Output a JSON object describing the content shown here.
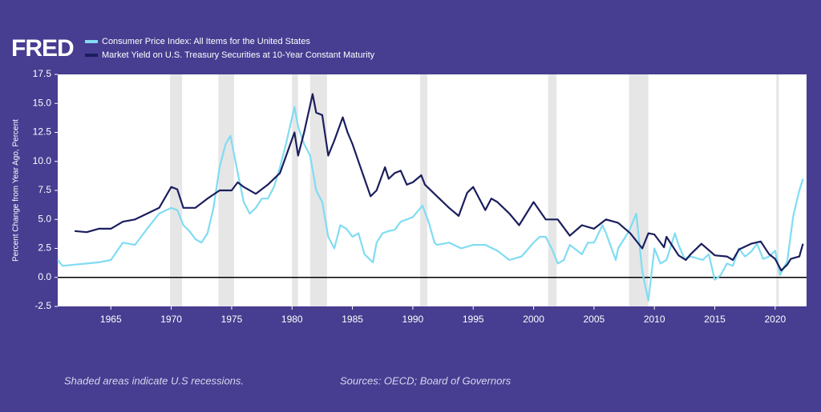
{
  "chart_data": {
    "type": "line",
    "brand": "FRED",
    "ylabel": "Percent Change from Year Ago, Percent",
    "footnote": "Shaded areas indicate U.S recessions.",
    "source": "Sources: OECD; Board of Governors",
    "xlim": [
      1960.6,
      2022.6
    ],
    "xticks": [
      1965,
      1970,
      1975,
      1980,
      1985,
      1990,
      1995,
      2000,
      2005,
      2010,
      2015,
      2020
    ],
    "ylim": [
      -2.5,
      17.5
    ],
    "yticks": [
      17.5,
      {
        "value": 15,
        "label": "15.0"
      },
      12.5,
      {
        "value": 10,
        "label": "10.0"
      },
      7.5,
      {
        "value": 5,
        "label": "5.0"
      },
      2.5,
      {
        "value": 0,
        "label": "0.0"
      },
      -2.5
    ],
    "baseline": 0,
    "recession_color": "#e6e6e6",
    "recessions": [
      [
        1969.9,
        1970.9
      ],
      [
        1973.9,
        1975.2
      ],
      [
        1980.0,
        1980.5
      ],
      [
        1981.5,
        1982.9
      ],
      [
        1990.6,
        1991.2
      ],
      [
        2001.2,
        2001.9
      ],
      [
        2007.9,
        2009.5
      ],
      [
        2020.1,
        2020.3
      ]
    ],
    "series": [
      {
        "name": "Consumer Price Index: All Items for the United States",
        "color": "#80dcf2",
        "x": [
          1960.6,
          1961,
          1962,
          1963,
          1964,
          1965,
          1966,
          1967,
          1968,
          1969,
          1970,
          1970.5,
          1971,
          1971.5,
          1972,
          1972.5,
          1973,
          1973.5,
          1974,
          1974.5,
          1974.9,
          1975.5,
          1976,
          1976.5,
          1977,
          1977.5,
          1978,
          1978.5,
          1979,
          1979.5,
          1980.2,
          1980.5,
          1981,
          1981.5,
          1982,
          1982.5,
          1983,
          1983.5,
          1984,
          1984.5,
          1985,
          1985.5,
          1986,
          1986.7,
          1987,
          1987.5,
          1988,
          1988.5,
          1989,
          1989.5,
          1990,
          1990.8,
          1991.3,
          1991.8,
          1992,
          1993,
          1994,
          1995,
          1996,
          1997,
          1998,
          1999,
          2000,
          2000.5,
          2001,
          2001.5,
          2002,
          2002.5,
          2003,
          2004,
          2004.5,
          2005,
          2005.7,
          2006,
          2006.8,
          2007,
          2007.9,
          2008.5,
          2009,
          2009.5,
          2010,
          2010.5,
          2011,
          2011.7,
          2012,
          2012.5,
          2013,
          2014,
          2014.5,
          2015,
          2015.5,
          2016,
          2016.5,
          2017,
          2017.5,
          2018,
          2018.5,
          2019,
          2019.5,
          2020,
          2020.4,
          2021,
          2021.5,
          2022,
          2022.3
        ],
        "values": [
          1.5,
          1.0,
          1.1,
          1.2,
          1.3,
          1.5,
          3.0,
          2.8,
          4.2,
          5.5,
          6.0,
          5.8,
          4.5,
          4.0,
          3.3,
          3.0,
          3.8,
          6.0,
          9.5,
          11.5,
          12.2,
          9.0,
          6.5,
          5.5,
          6.0,
          6.8,
          6.8,
          7.8,
          9.5,
          11.5,
          14.7,
          13.0,
          11.5,
          10.5,
          7.5,
          6.5,
          3.5,
          2.5,
          4.5,
          4.2,
          3.5,
          3.8,
          2.0,
          1.3,
          3.0,
          3.8,
          4.0,
          4.1,
          4.8,
          5.0,
          5.2,
          6.2,
          4.8,
          3.0,
          2.8,
          3.0,
          2.5,
          2.8,
          2.8,
          2.3,
          1.5,
          1.8,
          3.0,
          3.5,
          3.5,
          2.5,
          1.2,
          1.5,
          2.8,
          2.0,
          3.0,
          3.0,
          4.5,
          3.8,
          1.5,
          2.5,
          4.0,
          5.5,
          0.5,
          -2.0,
          2.5,
          1.2,
          1.5,
          3.8,
          2.8,
          1.6,
          1.8,
          1.5,
          2.0,
          -0.2,
          0.2,
          1.2,
          1.0,
          2.5,
          1.8,
          2.2,
          2.9,
          1.6,
          1.8,
          2.3,
          0.2,
          1.4,
          5.3,
          7.5,
          8.5
        ]
      },
      {
        "name": "Market Yield on U.S. Treasury Securities at 10-Year Constant Maturity",
        "color": "#1b1e5e",
        "x": [
          1962,
          1963,
          1964,
          1965,
          1966,
          1967,
          1968,
          1969,
          1970,
          1970.5,
          1971,
          1972,
          1973,
          1974,
          1975,
          1975.5,
          1976,
          1977,
          1978,
          1979,
          1980.2,
          1980.5,
          1981,
          1981.7,
          1982,
          1982.5,
          1983,
          1983.5,
          1984.2,
          1984.6,
          1985,
          1985.5,
          1986,
          1986.5,
          1987,
          1987.7,
          1988,
          1988.5,
          1989,
          1989.5,
          1990,
          1990.7,
          1991,
          1992,
          1993,
          1993.8,
          1994.5,
          1995,
          1996,
          1996.5,
          1997,
          1998,
          1998.8,
          2000,
          2001,
          2002,
          2003,
          2004,
          2005,
          2006,
          2007,
          2008,
          2009,
          2009.5,
          2010,
          2010.8,
          2011,
          2012,
          2012.6,
          2013,
          2013.9,
          2015,
          2016,
          2016.5,
          2017,
          2018,
          2018.8,
          2019.5,
          2020,
          2020.5,
          2021,
          2021.3,
          2022,
          2022.3
        ],
        "values": [
          4.0,
          3.9,
          4.2,
          4.2,
          4.8,
          5.0,
          5.5,
          6.0,
          7.8,
          7.6,
          6.0,
          6.0,
          6.8,
          7.5,
          7.5,
          8.2,
          7.8,
          7.2,
          8.0,
          9.0,
          12.5,
          10.5,
          12.5,
          15.8,
          14.2,
          14.0,
          10.5,
          11.8,
          13.8,
          12.5,
          11.5,
          10.0,
          8.5,
          7.0,
          7.5,
          9.5,
          8.5,
          9.0,
          9.2,
          8.0,
          8.2,
          8.8,
          8.0,
          7.0,
          6.0,
          5.3,
          7.3,
          7.8,
          5.8,
          6.8,
          6.5,
          5.5,
          4.5,
          6.5,
          5.0,
          5.0,
          3.6,
          4.5,
          4.2,
          5.0,
          4.7,
          3.8,
          2.5,
          3.8,
          3.7,
          2.6,
          3.5,
          1.9,
          1.5,
          2.0,
          2.9,
          1.9,
          1.8,
          1.5,
          2.4,
          2.9,
          3.1,
          2.0,
          1.6,
          0.6,
          1.1,
          1.6,
          1.8,
          2.9
        ]
      }
    ]
  }
}
